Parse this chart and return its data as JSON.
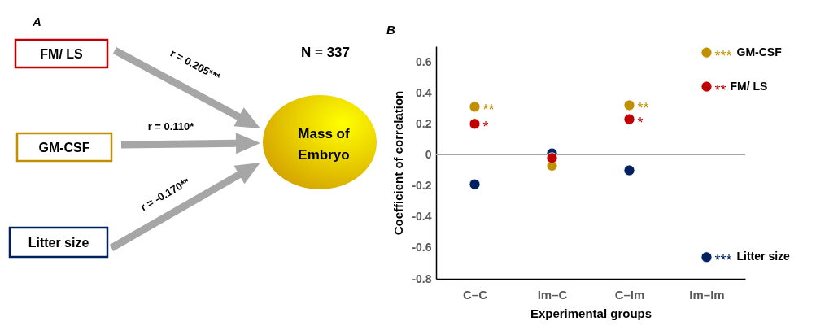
{
  "chart_data": [
    {
      "type": "other",
      "title": "A",
      "annotations": [
        "FM/ LS",
        "GM-CSF",
        "Litter size",
        "r = 0.205***",
        "r = 0.110*",
        "r = -0.170**",
        "N = 337",
        "Mass of Embryo"
      ]
    },
    {
      "type": "scatter",
      "title": "B",
      "xlabel": "Experimental groups",
      "ylabel": "Coefficient of correlation",
      "categories": [
        "C–C",
        "Im–C",
        "C–Im",
        "Im–Im"
      ],
      "series": [
        {
          "name": "FM/ LS",
          "color": "#c00000",
          "values": [
            0.2,
            -0.02,
            0.23,
            0.44
          ],
          "value_labels": [
            "*",
            null,
            "*",
            "**"
          ]
        },
        {
          "name": "GM-CSF",
          "color": "#bf9000",
          "values": [
            0.31,
            -0.07,
            0.32,
            0.66
          ],
          "value_labels": [
            "**",
            null,
            "**",
            "***"
          ]
        },
        {
          "name": "Litter size",
          "color": "#002060",
          "values": [
            -0.19,
            0.01,
            -0.1,
            -0.66
          ],
          "value_labels": [
            null,
            null,
            null,
            "***"
          ]
        }
      ],
      "ylim": [
        -0.8,
        0.7
      ],
      "yticks": [
        -0.8,
        -0.6,
        -0.4,
        -0.2,
        0,
        0.2,
        0.4,
        0.6
      ],
      "ref_lines": [
        {
          "axis": "y",
          "value": 0,
          "color": "#a6a6a6"
        }
      ],
      "legend": false,
      "grid": false,
      "marker": "circle"
    }
  ]
}
